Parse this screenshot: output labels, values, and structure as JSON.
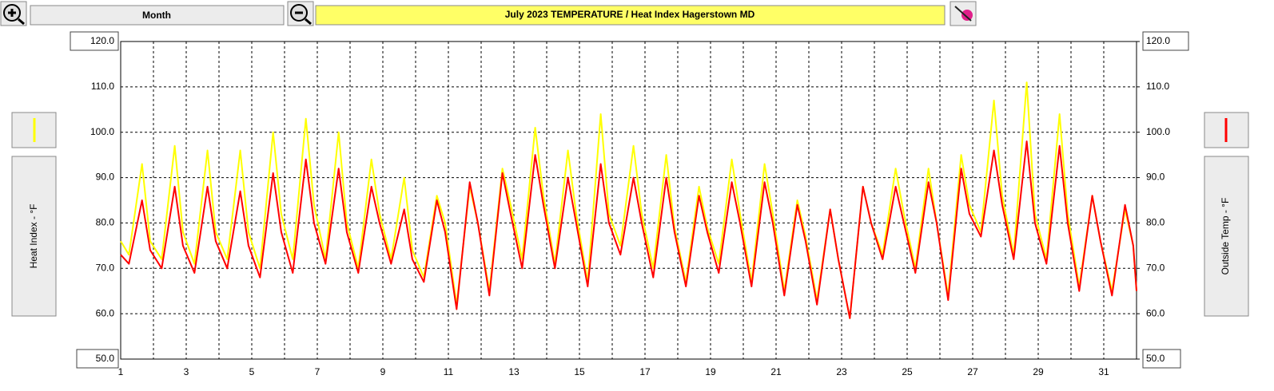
{
  "toolbar": {
    "range_button": "Month"
  },
  "chart_data": {
    "type": "line",
    "title": "July  2023   TEMPERATURE / Heat Index  Hagerstown MD",
    "ylabel": "Heat Index - °F",
    "y2label": "Outside Temp - °F",
    "x": [
      1,
      1.25,
      1.65,
      1.9,
      2.25,
      2.65,
      2.9,
      3.25,
      3.65,
      3.9,
      4.25,
      4.65,
      4.9,
      5.25,
      5.65,
      5.9,
      6.25,
      6.65,
      6.9,
      7.25,
      7.65,
      7.9,
      8.25,
      8.65,
      8.9,
      9.25,
      9.65,
      9.9,
      10.25,
      10.65,
      10.9,
      11.25,
      11.65,
      11.9,
      12.25,
      12.65,
      12.9,
      13.25,
      13.65,
      13.9,
      14.25,
      14.65,
      14.9,
      15.25,
      15.65,
      15.9,
      16.25,
      16.65,
      16.9,
      17.25,
      17.65,
      17.9,
      18.25,
      18.65,
      18.9,
      19.25,
      19.65,
      19.9,
      20.25,
      20.65,
      20.9,
      21.25,
      21.65,
      21.9,
      22.25,
      22.65,
      22.9,
      23.25,
      23.65,
      23.9,
      24.25,
      24.65,
      24.9,
      25.25,
      25.65,
      25.9,
      26.25,
      26.65,
      26.9,
      27.25,
      27.65,
      27.9,
      28.25,
      28.65,
      28.9,
      29.25,
      29.65,
      29.9,
      30.25,
      30.65,
      30.9,
      31.25,
      31.65,
      31.9,
      32
    ],
    "series": [
      {
        "color": "#ffff00",
        "axis": "y",
        "values": [
          76,
          73,
          93,
          76,
          72,
          97,
          78,
          71,
          96,
          78,
          72,
          96,
          78,
          70,
          100,
          82,
          72,
          103,
          84,
          72,
          100,
          80,
          70,
          94,
          82,
          72,
          90,
          74,
          68,
          86,
          80,
          62,
          88,
          80,
          65,
          92,
          84,
          72,
          101,
          86,
          71,
          96,
          82,
          67,
          104,
          82,
          75,
          97,
          82,
          70,
          95,
          79,
          67,
          88,
          79,
          71,
          94,
          82,
          67,
          93,
          82,
          65,
          85,
          77,
          63,
          83,
          72,
          59,
          88,
          80,
          73,
          92,
          82,
          70,
          92,
          80,
          64,
          95,
          84,
          78,
          107,
          86,
          73,
          111,
          82,
          72,
          104,
          82,
          66,
          86,
          76,
          65,
          83,
          75,
          65
        ]
      },
      {
        "color": "#ff0000",
        "axis": "y2",
        "values": [
          73,
          71,
          85,
          74,
          70,
          88,
          75,
          69,
          88,
          76,
          70,
          87,
          75,
          68,
          91,
          78,
          69,
          94,
          80,
          71,
          92,
          78,
          69,
          88,
          80,
          71,
          83,
          72,
          67,
          85,
          78,
          61,
          89,
          80,
          64,
          91,
          82,
          70,
          95,
          84,
          70,
          90,
          80,
          66,
          93,
          80,
          73,
          90,
          80,
          68,
          90,
          78,
          66,
          86,
          78,
          69,
          89,
          80,
          66,
          89,
          80,
          64,
          84,
          76,
          62,
          83,
          72,
          59,
          88,
          80,
          72,
          88,
          80,
          69,
          89,
          80,
          63,
          92,
          82,
          77,
          96,
          84,
          72,
          98,
          80,
          71,
          97,
          80,
          65,
          86,
          76,
          64,
          84,
          75,
          65
        ]
      }
    ],
    "xlim": [
      1,
      32
    ],
    "xticks": [
      1,
      3,
      5,
      7,
      9,
      11,
      13,
      15,
      17,
      19,
      21,
      23,
      25,
      27,
      29,
      31
    ],
    "x_minor_ticks": [
      2,
      4,
      6,
      8,
      10,
      12,
      14,
      16,
      18,
      20,
      22,
      24,
      26,
      28,
      30,
      32
    ],
    "ylim": [
      50,
      120
    ],
    "yticks": [
      {
        "value": 50,
        "label": "50.0"
      },
      {
        "value": 60,
        "label": "60.0"
      },
      {
        "value": 70,
        "label": "70.0"
      },
      {
        "value": 80,
        "label": "80.0"
      },
      {
        "value": 90,
        "label": "90.0"
      },
      {
        "value": 100,
        "label": "100.0"
      },
      {
        "value": 110,
        "label": "110.0"
      },
      {
        "value": 120,
        "label": "120.0"
      }
    ],
    "y2lim": [
      50,
      120
    ],
    "y2ticks": [
      {
        "value": 50,
        "label": "50.0"
      },
      {
        "value": 60,
        "label": "60.0"
      },
      {
        "value": 70,
        "label": "70.0"
      },
      {
        "value": 80,
        "label": "80.0"
      },
      {
        "value": 90,
        "label": "90.0"
      },
      {
        "value": 100,
        "label": "100.0"
      },
      {
        "value": 110,
        "label": "110.0"
      },
      {
        "value": 120,
        "label": "120.0"
      }
    ],
    "grid": true
  }
}
